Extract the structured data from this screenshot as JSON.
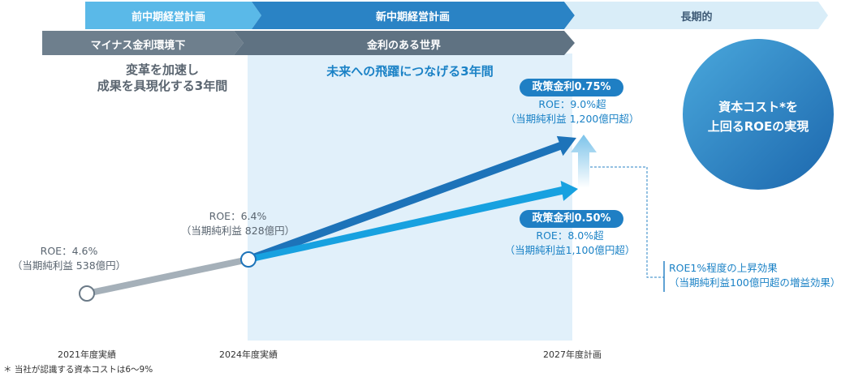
{
  "top_phases": [
    {
      "label": "前中期経営計画",
      "color": "#5ab9e8"
    },
    {
      "label": "新中期経営計画",
      "color": "#2a83c5"
    },
    {
      "label": "長期的",
      "color": "#d9edf8"
    }
  ],
  "rate_phases": [
    {
      "label": "マイナス金利環境下",
      "color": "#6e7f8d"
    },
    {
      "label": "金利のある世界",
      "color": "#5f7282"
    }
  ],
  "left_caption": {
    "line1": "変革を加速し",
    "line2": "成果を具現化する3年間"
  },
  "mid_caption": "未来への飛躍につなげる3年間",
  "circle": {
    "line1": "資本コスト*を",
    "line2": "上回るROEの実現"
  },
  "points": {
    "p2021": {
      "roe": "ROE：4.6%",
      "profit": "（当期純利益 538億円）"
    },
    "p2024": {
      "roe": "ROE：6.4%",
      "profit": "（当期純利益 828億円）"
    }
  },
  "scenario_high": {
    "badge": "政策金利0.75%",
    "roe": "ROE：9.0%超",
    "profit": "（当期純利益 1,200億円超）"
  },
  "scenario_low": {
    "badge": "政策金利0.50%",
    "roe": "ROE：8.0%超",
    "profit": "（当期純利益1,100億円超）"
  },
  "uplift_note": {
    "line1": "ROE1%程度の上昇効果",
    "line2": "（当期純利益100億円超の増益効果）"
  },
  "x_labels": [
    "2021年度実績",
    "2024年度実績",
    "2027年度計画"
  ],
  "footnote": "＊ 当社が認識する資本コストは6～9%",
  "colors": {
    "accent": "#1b82c6",
    "line_gray": "#a5b0b9"
  }
}
